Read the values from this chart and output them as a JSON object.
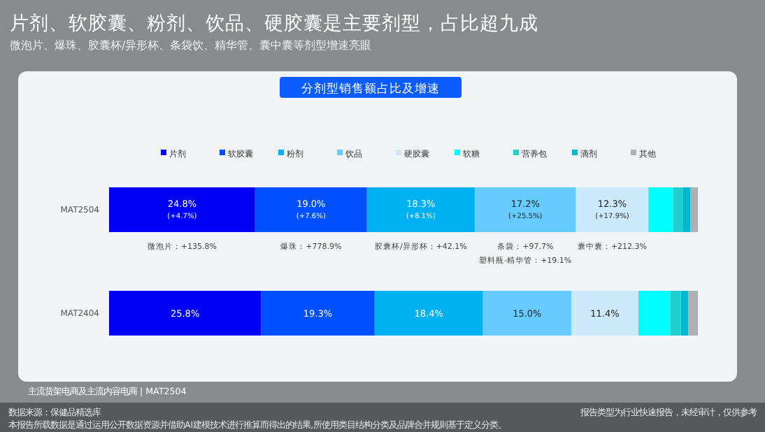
{
  "chart_data": {
    "type": "bar",
    "orientation": "horizontal",
    "stacked": true,
    "title": "片剂、软胶囊、粉剂、饮品、硬胶囊是主要剂型，占比超九成",
    "subtitle": "微泡片、爆珠、胶囊杯/异形杯、条袋饮、精华管、囊中囊等剂型增速亮眼",
    "categories": [
      "MAT2504",
      "MAT2404"
    ],
    "legend": "top",
    "series": [
      {
        "name": "片剂",
        "color": "#0000f5",
        "values": [
          24.8,
          25.8
        ],
        "value_labels": [
          "24.8%$_{(+4.7%)}$",
          "25.8%"
        ]
      },
      {
        "name": "软胶囊",
        "color": "#0050ff",
        "values": [
          19.0,
          19.3
        ],
        "value_labels": [
          "19.0%$_{(+7.6%)}$",
          "19.3%"
        ]
      },
      {
        "name": "粉剂",
        "color": "#00b0f0",
        "values": [
          18.3,
          18.4
        ],
        "value_labels": [
          "18.3%$_{(+8.1%)}$",
          "18.4%"
        ]
      },
      {
        "name": "饮品",
        "color": "#66ccff",
        "values": [
          17.2,
          15.0
        ],
        "value_labels": [
          "17.2%$_{(+25.5%)}$",
          "15.0%"
        ]
      },
      {
        "name": "硬胶囊",
        "color": "#cce9fb",
        "values": [
          12.3,
          11.4
        ],
        "value_labels": [
          "12.3%$_{(+17.9%)}$",
          "11.4%"
        ]
      },
      {
        "name": "软糖",
        "color": "#00ffff",
        "values": [
          4.2,
          5.4
        ]
      },
      {
        "name": "营养包",
        "color": "#20d0d0",
        "values": [
          1.7,
          1.8
        ]
      },
      {
        "name": "滴剂",
        "color": "#00b8d0",
        "values": [
          1.2,
          1.3
        ]
      },
      {
        "name": "其他",
        "color": "#b0b0b0",
        "values": [
          1.3,
          1.6
        ]
      }
    ],
    "annotations": [
      "分剂型销售额占比及增速",
      "微泡片：+135.8%",
      "爆珠：+778.9%",
      "胶囊杯/异形杯：+42.1%",
      "条袋：+97.7%",
      "塑料瓶-精华管：+19.1%",
      "囊中囊：+212.3%",
      "主流货架电商及主流内容电商 | MAT2504",
      "数据来源：保健品精选库",
      "本报告所载数据是通过运用公开数据资源并借助AI建模技术进行推算而得出的结果,所使用类目结构分类及品牌合并规则基于定义分类。",
      "报告类型为行业快速报告，未经审计，仅供参考"
    ]
  }
}
